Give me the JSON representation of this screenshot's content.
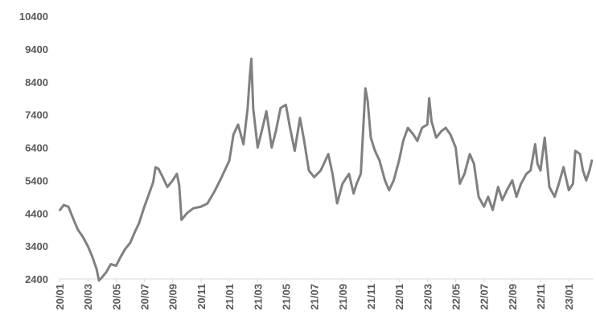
{
  "chart_data": {
    "type": "line",
    "title": "",
    "xlabel": "",
    "ylabel": "",
    "ylim": [
      2400,
      10400
    ],
    "y_ticks": [
      "10400",
      "9400",
      "8400",
      "7400",
      "6400",
      "5400",
      "4400",
      "3400",
      "2400"
    ],
    "x_ticks": [
      "20/01",
      "20/03",
      "20/05",
      "20/07",
      "20/09",
      "20/11",
      "21/01",
      "21/03",
      "21/05",
      "21/07",
      "21/09",
      "21/11",
      "22/01",
      "22/03",
      "22/05",
      "22/07",
      "22/09",
      "22/11",
      "23/01"
    ],
    "x_range": [
      "2020-01",
      "2023-02"
    ],
    "grid": false,
    "legend": "none",
    "line_color": "#808080",
    "series": [
      {
        "points": [
          [
            "2020-01-02",
            4500
          ],
          [
            "2020-01-10",
            4650
          ],
          [
            "2020-01-20",
            4600
          ],
          [
            "2020-02-01",
            4200
          ],
          [
            "2020-02-10",
            3900
          ],
          [
            "2020-02-20",
            3700
          ],
          [
            "2020-03-01",
            3400
          ],
          [
            "2020-03-10",
            3100
          ],
          [
            "2020-03-20",
            2700
          ],
          [
            "2020-03-25",
            2350
          ],
          [
            "2020-04-01",
            2450
          ],
          [
            "2020-04-10",
            2600
          ],
          [
            "2020-04-20",
            2850
          ],
          [
            "2020-05-01",
            2800
          ],
          [
            "2020-05-10",
            3050
          ],
          [
            "2020-05-20",
            3300
          ],
          [
            "2020-06-01",
            3500
          ],
          [
            "2020-06-10",
            3800
          ],
          [
            "2020-06-20",
            4100
          ],
          [
            "2020-07-01",
            4600
          ],
          [
            "2020-07-10",
            4950
          ],
          [
            "2020-07-20",
            5350
          ],
          [
            "2020-07-25",
            5800
          ],
          [
            "2020-08-01",
            5750
          ],
          [
            "2020-08-10",
            5500
          ],
          [
            "2020-08-20",
            5200
          ],
          [
            "2020-09-01",
            5400
          ],
          [
            "2020-09-10",
            5600
          ],
          [
            "2020-09-15",
            5250
          ],
          [
            "2020-09-20",
            4200
          ],
          [
            "2020-10-01",
            4400
          ],
          [
            "2020-10-15",
            4550
          ],
          [
            "2020-11-01",
            4600
          ],
          [
            "2020-11-15",
            4700
          ],
          [
            "2020-12-01",
            5100
          ],
          [
            "2020-12-15",
            5500
          ],
          [
            "2021-01-01",
            6000
          ],
          [
            "2021-01-10",
            6800
          ],
          [
            "2021-01-20",
            7100
          ],
          [
            "2021-02-01",
            6500
          ],
          [
            "2021-02-10",
            7600
          ],
          [
            "2021-02-15",
            8600
          ],
          [
            "2021-02-18",
            9100
          ],
          [
            "2021-02-22",
            7600
          ],
          [
            "2021-03-01",
            6400
          ],
          [
            "2021-03-10",
            6900
          ],
          [
            "2021-03-20",
            7500
          ],
          [
            "2021-04-01",
            6400
          ],
          [
            "2021-04-10",
            6900
          ],
          [
            "2021-04-20",
            7600
          ],
          [
            "2021-05-01",
            7700
          ],
          [
            "2021-05-10",
            7000
          ],
          [
            "2021-05-20",
            6300
          ],
          [
            "2021-06-01",
            7300
          ],
          [
            "2021-06-10",
            6600
          ],
          [
            "2021-06-20",
            5700
          ],
          [
            "2021-07-01",
            5500
          ],
          [
            "2021-07-15",
            5700
          ],
          [
            "2021-08-01",
            6200
          ],
          [
            "2021-08-10",
            5600
          ],
          [
            "2021-08-20",
            4700
          ],
          [
            "2021-09-01",
            5300
          ],
          [
            "2021-09-15",
            5600
          ],
          [
            "2021-09-25",
            5000
          ],
          [
            "2021-10-01",
            5300
          ],
          [
            "2021-10-10",
            5600
          ],
          [
            "2021-10-20",
            8200
          ],
          [
            "2021-10-25",
            7800
          ],
          [
            "2021-11-01",
            6700
          ],
          [
            "2021-11-10",
            6300
          ],
          [
            "2021-11-20",
            6000
          ],
          [
            "2021-12-01",
            5400
          ],
          [
            "2021-12-10",
            5100
          ],
          [
            "2021-12-20",
            5400
          ],
          [
            "2022-01-01",
            6000
          ],
          [
            "2022-01-10",
            6600
          ],
          [
            "2022-01-20",
            7000
          ],
          [
            "2022-02-01",
            6800
          ],
          [
            "2022-02-10",
            6600
          ],
          [
            "2022-02-20",
            7000
          ],
          [
            "2022-03-01",
            7100
          ],
          [
            "2022-03-05",
            7900
          ],
          [
            "2022-03-10",
            7200
          ],
          [
            "2022-03-20",
            6700
          ],
          [
            "2022-04-01",
            6900
          ],
          [
            "2022-04-10",
            7000
          ],
          [
            "2022-04-20",
            6800
          ],
          [
            "2022-05-01",
            6400
          ],
          [
            "2022-05-10",
            5300
          ],
          [
            "2022-05-20",
            5600
          ],
          [
            "2022-06-01",
            6200
          ],
          [
            "2022-06-10",
            5900
          ],
          [
            "2022-06-20",
            4900
          ],
          [
            "2022-07-01",
            4600
          ],
          [
            "2022-07-10",
            4900
          ],
          [
            "2022-07-20",
            4500
          ],
          [
            "2022-08-01",
            5200
          ],
          [
            "2022-08-10",
            4800
          ],
          [
            "2022-08-20",
            5100
          ],
          [
            "2022-09-01",
            5400
          ],
          [
            "2022-09-10",
            4900
          ],
          [
            "2022-09-20",
            5300
          ],
          [
            "2022-10-01",
            5600
          ],
          [
            "2022-10-10",
            5700
          ],
          [
            "2022-10-20",
            6500
          ],
          [
            "2022-10-25",
            5900
          ],
          [
            "2022-11-01",
            5700
          ],
          [
            "2022-11-10",
            6700
          ],
          [
            "2022-11-20",
            5200
          ],
          [
            "2022-12-01",
            4900
          ],
          [
            "2022-12-10",
            5300
          ],
          [
            "2022-12-20",
            5800
          ],
          [
            "2023-01-01",
            5100
          ],
          [
            "2023-01-10",
            5300
          ],
          [
            "2023-01-15",
            6300
          ],
          [
            "2023-01-25",
            6200
          ],
          [
            "2023-02-01",
            5700
          ],
          [
            "2023-02-08",
            5400
          ],
          [
            "2023-02-15",
            5700
          ],
          [
            "2023-02-20",
            6000
          ]
        ]
      }
    ]
  }
}
